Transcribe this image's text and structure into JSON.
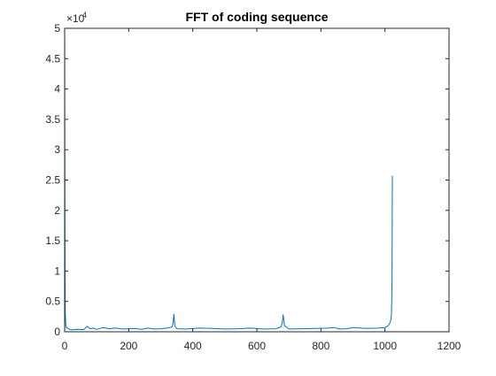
{
  "chart_data": {
    "type": "line",
    "title": "FFT of coding sequence",
    "xlabel": "",
    "ylabel": "",
    "xlim": [
      0,
      1200
    ],
    "ylim": [
      0,
      50000
    ],
    "x_ticks": [
      0,
      200,
      400,
      600,
      800,
      1000,
      1200
    ],
    "x_tick_labels": [
      "0",
      "200",
      "400",
      "600",
      "800",
      "1000",
      "1200"
    ],
    "y_ticks": [
      0,
      5000,
      10000,
      15000,
      20000,
      25000,
      30000,
      35000,
      40000,
      45000,
      50000
    ],
    "y_tick_labels": [
      "0",
      "0.5",
      "1",
      "1.5",
      "2",
      "2.5",
      "3",
      "3.5",
      "4",
      "4.5",
      "5"
    ],
    "y_exponent_label": "×10",
    "y_exponent_power": "4",
    "grid": false,
    "box": true,
    "colors": {
      "line": "#0072BD",
      "axes": "#262626",
      "background": "#ffffff"
    },
    "series": [
      {
        "x": [
          0,
          1,
          2,
          4,
          8,
          20,
          40,
          60,
          70,
          80,
          90,
          100,
          120,
          140,
          160,
          180,
          200,
          220,
          240,
          260,
          280,
          300,
          320,
          335,
          338,
          341,
          344,
          350,
          380,
          420,
          460,
          500,
          540,
          580,
          620,
          660,
          675,
          679,
          682,
          686,
          700,
          740,
          780,
          820,
          840,
          860,
          880,
          900,
          940,
          980,
          1000,
          1010,
          1015,
          1018,
          1020,
          1022,
          1023
        ],
        "y": [
          50000,
          12000,
          3000,
          900,
          600,
          300,
          400,
          350,
          900,
          500,
          600,
          400,
          700,
          500,
          600,
          450,
          500,
          550,
          400,
          600,
          450,
          500,
          600,
          800,
          1200,
          2900,
          1000,
          500,
          450,
          600,
          550,
          450,
          500,
          600,
          450,
          500,
          800,
          1400,
          2800,
          1000,
          450,
          500,
          550,
          600,
          700,
          450,
          500,
          700,
          550,
          600,
          700,
          1000,
          1400,
          1900,
          2600,
          8000,
          25700
        ]
      }
    ]
  }
}
